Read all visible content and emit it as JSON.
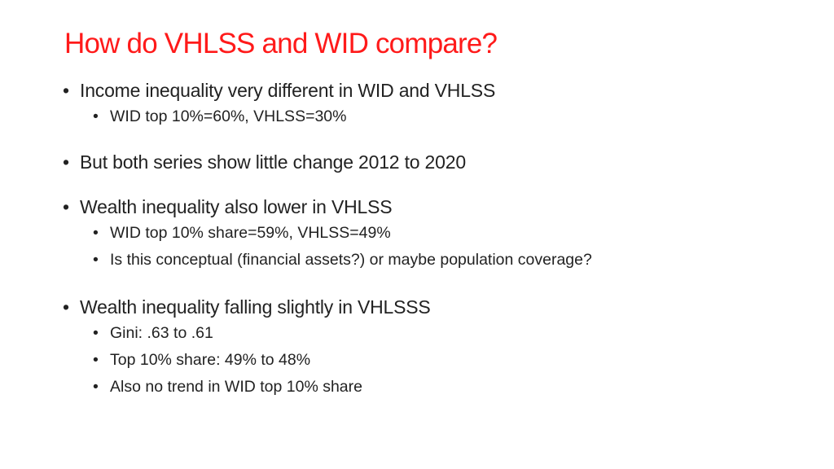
{
  "slide": {
    "title": "How do VHLSS and WID compare?",
    "bullet_glyph": "•",
    "title_color": "#ff1a1a",
    "sections": [
      {
        "text": "Income inequality very different in WID and VHLSS",
        "sub": [
          "WID top 10%=60%, VHLSS=30%"
        ]
      },
      {
        "text": "But both series show little change 2012 to 2020",
        "sub": []
      },
      {
        "text": "Wealth inequality also lower in VHLSS",
        "sub": [
          "WID top 10% share=59%, VHLSS=49%",
          "Is this conceptual (financial assets?) or maybe population coverage?"
        ]
      },
      {
        "text": "Wealth inequality falling slightly in VHLSSS",
        "sub": [
          "Gini: .63 to .61",
          "Top 10% share: 49% to 48%",
          "Also no trend in WID top 10% share"
        ]
      }
    ]
  }
}
